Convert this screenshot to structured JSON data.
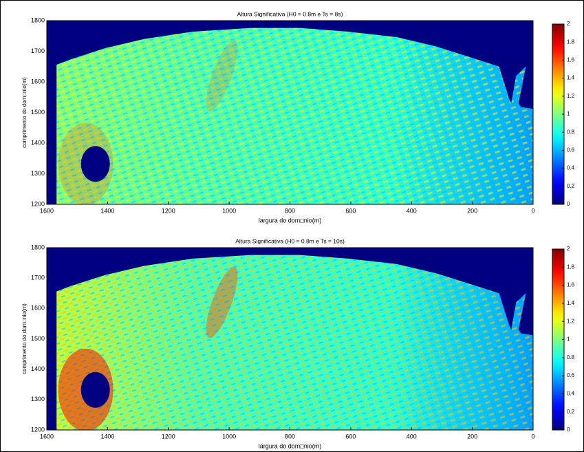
{
  "chart_data": [
    {
      "type": "heatmap",
      "title": "Altura Significativa (H0 = 0.8m e Ts = 8s)",
      "xlabel": "largura do dom□nio(m)",
      "ylabel": "comprimento do dom□nio(m)",
      "xlim": [
        1600,
        0
      ],
      "xticks": [
        1600,
        1400,
        1200,
        1000,
        800,
        600,
        400,
        200,
        0
      ],
      "ylim": [
        1200,
        1800
      ],
      "yticks": [
        1200,
        1300,
        1400,
        1500,
        1600,
        1700,
        1800
      ],
      "colormap": "jet",
      "colorbar": {
        "clim": [
          0,
          2
        ],
        "ticks": [
          0,
          0.2,
          0.4,
          0.6,
          0.8,
          1,
          1.2,
          1.4,
          1.6,
          1.8,
          2
        ]
      }
    },
    {
      "type": "heatmap",
      "title": "Altura Significativa (H0 = 0.8m e Ts = 10s)",
      "xlabel": "largura do dom□nio(m)",
      "ylabel": "comprimento do dom□nio(m)",
      "xlim": [
        1600,
        0
      ],
      "xticks": [
        1600,
        1400,
        1200,
        1000,
        800,
        600,
        400,
        200,
        0
      ],
      "ylim": [
        1200,
        1800
      ],
      "yticks": [
        1200,
        1300,
        1400,
        1500,
        1600,
        1700,
        1800
      ],
      "colormap": "jet",
      "colorbar": {
        "clim": [
          0,
          2
        ],
        "ticks": [
          0,
          0.2,
          0.4,
          0.6,
          0.8,
          1,
          1.2,
          1.4,
          1.6,
          1.8,
          2
        ]
      }
    }
  ]
}
